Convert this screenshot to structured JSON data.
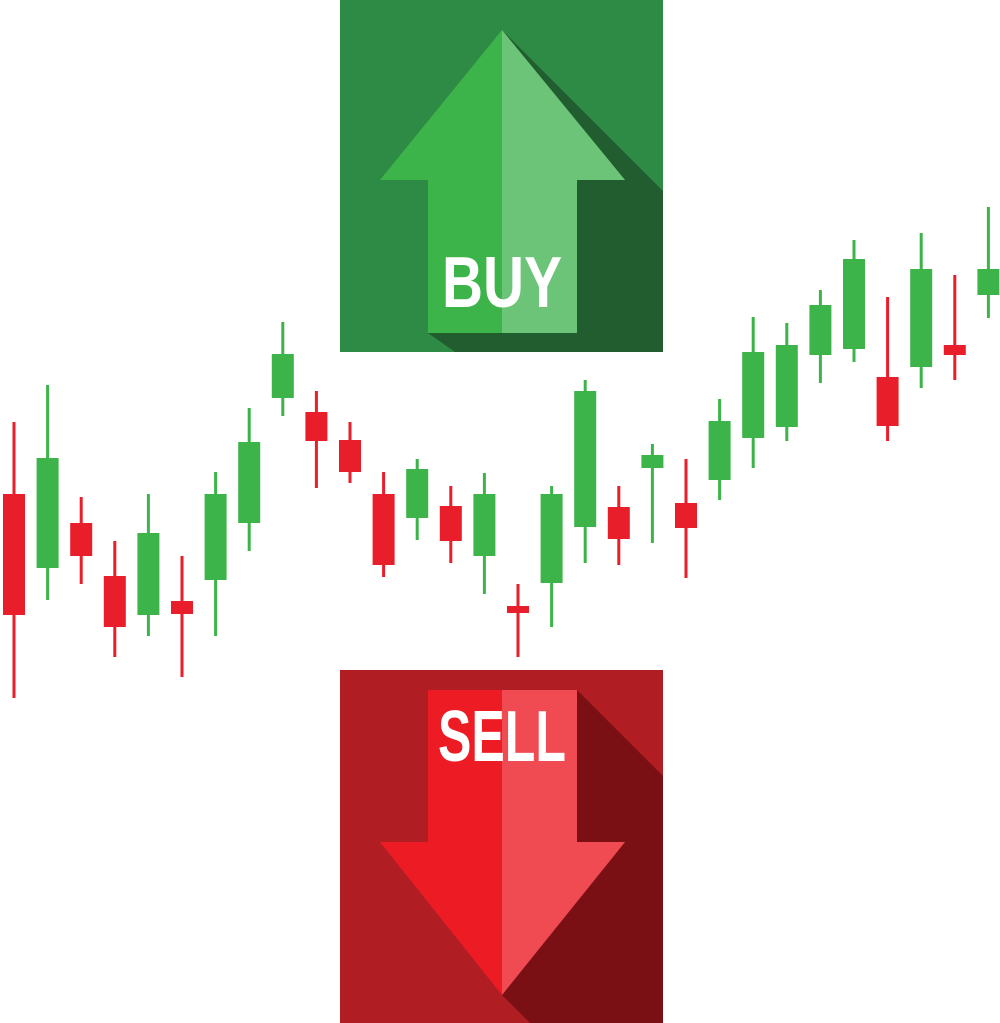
{
  "chart_data": {
    "type": "candlestick",
    "annotations": [
      "BUY",
      "SELL"
    ],
    "up_color": "#3cb44a",
    "down_color": "#e81e2a",
    "ylim": [
      0,
      102.3
    ],
    "open": [
      52.9,
      45.5,
      50.0,
      44.7,
      40.8,
      42.2,
      44.3,
      50.0,
      62.5,
      61.1,
      58.3,
      52.9,
      50.5,
      51.7,
      46.7,
      41.7,
      44.0,
      49.6,
      51.6,
      55.5,
      52.0,
      54.3,
      58.5,
      59.6,
      66.8,
      67.4,
      64.6,
      65.6,
      67.8,
      72.8
    ],
    "high": [
      60.1,
      63.8,
      52.6,
      48.2,
      52.9,
      46.7,
      55.1,
      61.5,
      70.1,
      63.2,
      60.1,
      55.1,
      56.4,
      53.7,
      55.0,
      43.9,
      53.7,
      64.3,
      53.7,
      57.9,
      56.4,
      62.4,
      70.6,
      70.0,
      73.3,
      78.3,
      72.6,
      79.0,
      74.8,
      81.6
    ],
    "low": [
      32.5,
      42.3,
      43.9,
      36.6,
      38.7,
      34.6,
      38.7,
      47.2,
      60.7,
      53.5,
      54.0,
      44.6,
      48.3,
      46.0,
      42.9,
      36.6,
      39.6,
      46.0,
      45.8,
      48.0,
      44.5,
      52.3,
      55.5,
      58.2,
      64.0,
      66.1,
      58.2,
      63.5,
      64.3,
      70.5
    ],
    "close": [
      40.8,
      56.5,
      46.7,
      39.6,
      49.0,
      40.9,
      52.9,
      58.1,
      66.9,
      58.2,
      55.1,
      45.8,
      55.4,
      48.2,
      52.9,
      41.0,
      52.9,
      63.2,
      48.4,
      56.8,
      49.5,
      60.2,
      67.1,
      67.8,
      71.8,
      76.4,
      59.7,
      75.4,
      66.8,
      75.4
    ]
  }
}
